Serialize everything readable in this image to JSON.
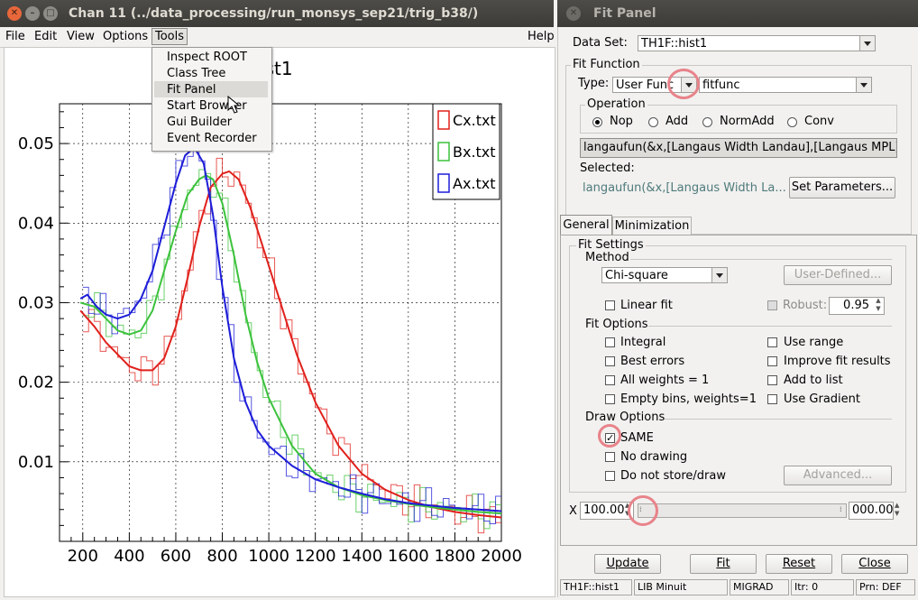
{
  "left_window": {
    "title": "Chan 11 (../data_processing/run_monsys_sep21/trig_b38/)",
    "menu": [
      "File",
      "Edit",
      "View",
      "Options",
      "Tools"
    ],
    "help": "Help",
    "tools_menu": [
      "Inspect ROOT",
      "Class Tree",
      "Fit Panel",
      "Start Browser",
      "Gui Builder",
      "Event Recorder"
    ]
  },
  "chart_data": {
    "type": "line",
    "title": "hist1",
    "xlabel": "",
    "ylabel": "",
    "xlim": [
      100,
      2000
    ],
    "ylim": [
      0,
      0.055
    ],
    "xticks": [
      200,
      400,
      600,
      800,
      1000,
      1200,
      1400,
      1600,
      1800,
      2000
    ],
    "xtick_labels": [
      "200",
      "400",
      "600",
      "800",
      "1000",
      "1200",
      "1400",
      "1600",
      "1800",
      "2000"
    ],
    "yticks": [
      0.01,
      0.02,
      0.03,
      0.04,
      0.05
    ],
    "ytick_labels": [
      "0.01",
      "0.02",
      "0.03",
      "0.04",
      "0.05"
    ],
    "grid": true,
    "legend": "top-right",
    "series": [
      {
        "name": "Cx.txt",
        "color": "#e0201b",
        "x": [
          190,
          250,
          300,
          350,
          400,
          450,
          500,
          550,
          600,
          650,
          700,
          750,
          800,
          830,
          870,
          920,
          980,
          1050,
          1120,
          1200,
          1300,
          1400,
          1500,
          1600,
          1700,
          1800,
          1900,
          2000
        ],
        "y": [
          0.029,
          0.027,
          0.025,
          0.0235,
          0.022,
          0.0215,
          0.0215,
          0.023,
          0.027,
          0.033,
          0.0395,
          0.0445,
          0.0462,
          0.0465,
          0.0455,
          0.042,
          0.0365,
          0.03,
          0.0235,
          0.0175,
          0.012,
          0.0085,
          0.0065,
          0.0052,
          0.0043,
          0.0037,
          0.0033,
          0.003
        ]
      },
      {
        "name": "Bx.txt",
        "color": "#3cc23c",
        "x": [
          190,
          250,
          300,
          350,
          400,
          450,
          500,
          550,
          600,
          650,
          700,
          730,
          760,
          800,
          850,
          900,
          950,
          1000,
          1100,
          1200,
          1300,
          1400,
          1500,
          1600,
          1700,
          1800,
          1900,
          2000
        ],
        "y": [
          0.03,
          0.0295,
          0.028,
          0.0265,
          0.026,
          0.0265,
          0.029,
          0.034,
          0.039,
          0.0435,
          0.0455,
          0.046,
          0.0455,
          0.0425,
          0.036,
          0.0285,
          0.0225,
          0.018,
          0.012,
          0.0085,
          0.0068,
          0.0058,
          0.0052,
          0.0047,
          0.0043,
          0.004,
          0.0037,
          0.0035
        ]
      },
      {
        "name": "Ax.txt",
        "color": "#1d1dd8",
        "x": [
          190,
          220,
          260,
          300,
          350,
          400,
          450,
          500,
          550,
          600,
          640,
          680,
          720,
          760,
          800,
          850,
          900,
          950,
          1000,
          1100,
          1200,
          1300,
          1400,
          1500,
          1600,
          1700,
          1800,
          1900,
          2000
        ],
        "y": [
          0.0305,
          0.031,
          0.0295,
          0.0285,
          0.028,
          0.0285,
          0.0305,
          0.034,
          0.0395,
          0.045,
          0.0485,
          0.0495,
          0.0475,
          0.041,
          0.032,
          0.023,
          0.0175,
          0.014,
          0.012,
          0.0095,
          0.0078,
          0.0068,
          0.006,
          0.0053,
          0.0048,
          0.0045,
          0.0042,
          0.004,
          0.0038
        ]
      }
    ]
  },
  "fit_panel": {
    "title": "Fit Panel",
    "data_set_label": "Data Set:",
    "data_set_value": "TH1F::hist1",
    "fit_function_title": "Fit Function",
    "type_label": "Type:",
    "type_value": "User Func",
    "func_value": "fitfunc",
    "operation_title": "Operation",
    "operations": [
      "Nop",
      "Add",
      "NormAdd",
      "Conv"
    ],
    "formula": "langaufun(&x,[Langaus Width Landau],[Langaus MPL],[La",
    "selected_label": "Selected:",
    "selected_value": "langaufun(&x,[Langaus Width La...",
    "set_parameters": "Set Parameters...",
    "tabs": [
      "General",
      "Minimization"
    ],
    "fit_settings_title": "Fit Settings",
    "method_title": "Method",
    "method_value": "Chi-square",
    "user_defined": "User-Defined...",
    "linear_fit": "Linear fit",
    "robust": "Robust:",
    "robust_value": "0.95",
    "fit_options_title": "Fit Options",
    "fit_options_left": [
      "Integral",
      "Best errors",
      "All weights = 1",
      "Empty bins, weights=1"
    ],
    "fit_options_right": [
      "Use range",
      "Improve fit results",
      "Add to list",
      "Use Gradient"
    ],
    "draw_options_title": "Draw Options",
    "draw_options": [
      "SAME",
      "No drawing",
      "Do not store/draw"
    ],
    "advanced": "Advanced...",
    "x_label": "X",
    "x_min": "100.00",
    "x_max": "000.00",
    "buttons": [
      "Update",
      "Fit",
      "Reset",
      "Close"
    ],
    "status": [
      "TH1F::hist1",
      "LIB Minuit",
      "MIGRAD",
      "Itr: 0",
      "Prn: DEF"
    ]
  }
}
